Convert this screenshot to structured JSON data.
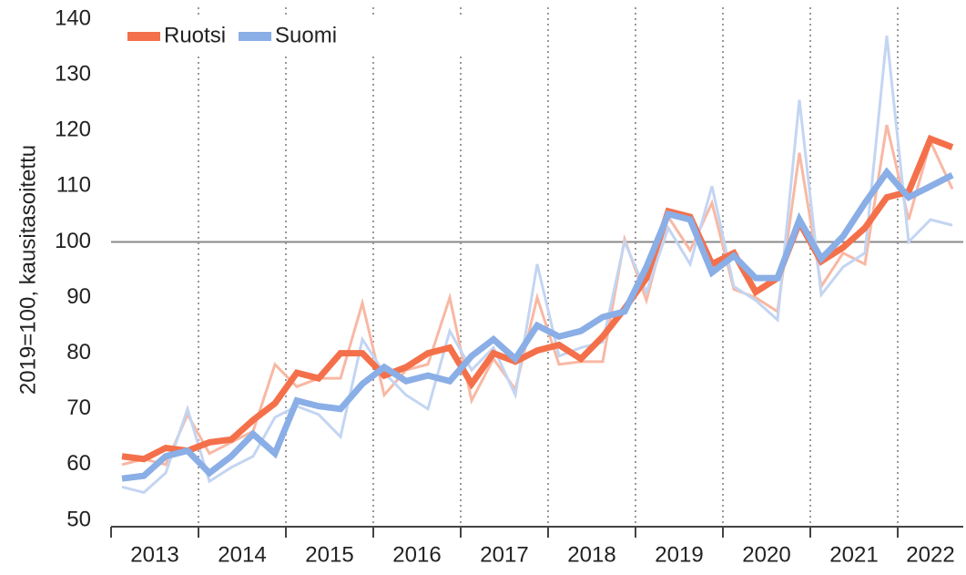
{
  "chart_data": {
    "type": "line",
    "ylabel": "2019=100, kausitasoitettu",
    "x": [
      2013.125,
      2013.375,
      2013.625,
      2013.875,
      2014.125,
      2014.375,
      2014.625,
      2014.875,
      2015.125,
      2015.375,
      2015.625,
      2015.875,
      2016.125,
      2016.375,
      2016.625,
      2016.875,
      2017.125,
      2017.375,
      2017.625,
      2017.875,
      2018.125,
      2018.375,
      2018.625,
      2018.875,
      2019.125,
      2019.375,
      2019.625,
      2019.875,
      2020.125,
      2020.375,
      2020.625,
      2020.875,
      2021.125,
      2021.375,
      2021.625,
      2021.875,
      2022.125,
      2022.375,
      2022.625
    ],
    "series": [
      {
        "color": "#f8b8a4",
        "width": 3,
        "values": [
          60,
          61,
          60,
          69,
          62,
          64,
          66,
          78,
          74,
          75.5,
          75.5,
          89,
          72.5,
          77,
          78,
          90,
          71.5,
          79,
          73.5,
          90,
          78,
          78.5,
          78.5,
          100.5,
          89.5,
          104.5,
          98.5,
          107,
          91.5,
          90,
          87.5,
          116,
          92,
          98,
          96,
          121,
          104,
          118,
          109.5
        ]
      },
      {
        "color": "#c3d5f2",
        "width": 3,
        "values": [
          56,
          55,
          58.5,
          70,
          57,
          59.5,
          61.5,
          68.5,
          70.5,
          69,
          65,
          82.5,
          76.5,
          72.5,
          70,
          84,
          77,
          81,
          72.5,
          96,
          79.5,
          81,
          82,
          100,
          91,
          102.5,
          96,
          110,
          92,
          89.5,
          86,
          125.5,
          90.5,
          95.5,
          98,
          137,
          100,
          104,
          103
        ]
      },
      {
        "name": "Ruotsi",
        "color": "#f4704a",
        "width": 7,
        "values": [
          61.5,
          61,
          63,
          62.5,
          64,
          64.5,
          68,
          71,
          76.5,
          75.5,
          80,
          80,
          76,
          77.5,
          80,
          81,
          74.5,
          80,
          78.5,
          80.5,
          81.5,
          79,
          83,
          88,
          93.5,
          105.5,
          104.5,
          96,
          98,
          91,
          93.5,
          103.5,
          96.5,
          99,
          102.5,
          108,
          109,
          118.5,
          117
        ]
      },
      {
        "name": "Suomi",
        "color": "#8aaee6",
        "width": 7,
        "values": [
          57.5,
          58,
          61.5,
          62.5,
          58.5,
          61.5,
          65.5,
          62,
          71.5,
          70.5,
          70,
          74.5,
          77.5,
          75,
          76,
          75,
          79.5,
          82.5,
          79,
          85,
          83,
          84,
          86.5,
          87.5,
          95.5,
          105,
          104,
          94.5,
          97.5,
          93.5,
          93.5,
          104,
          97,
          101,
          107,
          112.5,
          108,
          110,
          112
        ]
      }
    ],
    "xlim": [
      2013,
      2022.75
    ],
    "xticks": [
      2013,
      2014,
      2015,
      2016,
      2017,
      2018,
      2019,
      2020,
      2021,
      2022
    ],
    "ylim": [
      50,
      140
    ],
    "yticks": [
      50,
      60,
      70,
      80,
      90,
      100,
      110,
      120,
      130,
      140
    ],
    "reference_line": 100,
    "legend": "top-left"
  }
}
